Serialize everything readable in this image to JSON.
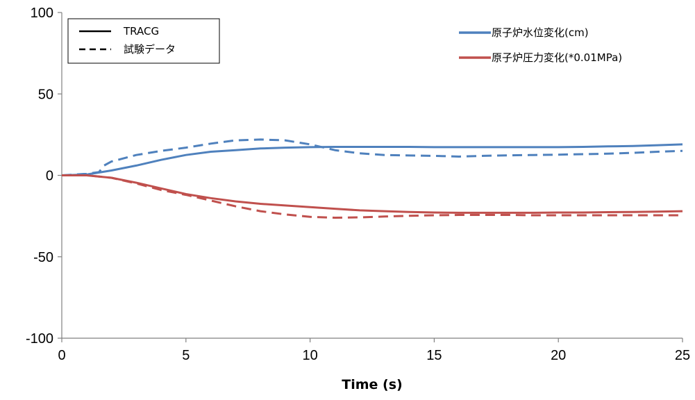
{
  "chart_data": {
    "type": "line",
    "xlabel": "Time (s)",
    "ylabel": "",
    "xlim": [
      0,
      25
    ],
    "ylim": [
      -100,
      100
    ],
    "xticks": [
      "0",
      "5",
      "10",
      "15",
      "20",
      "25"
    ],
    "yticks": [
      "100",
      "50",
      "0",
      "-50",
      "-100"
    ],
    "grid": false,
    "line_style_legend": [
      {
        "label": "TRACG",
        "style": "solid"
      },
      {
        "label": "試験データ",
        "style": "dashed"
      }
    ],
    "series": [
      {
        "name": "原子炉水位変化(cm)",
        "color": "#4F81BD",
        "style": "solid",
        "x": [
          0,
          1,
          2,
          3,
          4,
          5,
          6,
          7,
          8,
          9,
          10,
          11,
          12,
          13,
          14,
          15,
          16,
          17,
          18,
          19,
          20,
          21,
          22,
          23,
          24,
          25
        ],
        "y": [
          0,
          0.5,
          3,
          6,
          9.5,
          12.5,
          14.5,
          15.5,
          16.5,
          17,
          17.3,
          17.5,
          17.5,
          17.5,
          17.5,
          17.3,
          17.3,
          17.3,
          17.3,
          17.3,
          17.3,
          17.5,
          17.8,
          18,
          18.5,
          19
        ]
      },
      {
        "name": "原子炉水位変化(cm)",
        "color": "#4F81BD",
        "style": "dashed",
        "x": [
          0,
          1,
          1.5,
          1.7,
          2,
          3,
          4,
          5,
          6,
          7,
          8,
          9,
          10,
          11,
          12,
          13,
          14,
          15,
          16,
          17,
          18,
          19,
          20,
          21,
          22,
          23,
          24,
          25
        ],
        "y": [
          0,
          1,
          2,
          6,
          8.5,
          12.5,
          15,
          17,
          19.5,
          21.5,
          22,
          21.5,
          19,
          15.5,
          13.5,
          12.5,
          12.2,
          12,
          11.5,
          12,
          12.3,
          12.5,
          12.7,
          13,
          13.3,
          13.8,
          14.5,
          15
        ]
      },
      {
        "name": "原子炉圧力変化(*0.01MPa)",
        "color": "#C0504D",
        "style": "solid",
        "x": [
          0,
          1,
          2,
          3,
          4,
          5,
          6,
          7,
          8,
          9,
          10,
          11,
          12,
          13,
          14,
          15,
          16,
          17,
          18,
          19,
          20,
          21,
          22,
          23,
          24,
          25
        ],
        "y": [
          0,
          0,
          -1.5,
          -4.5,
          -8,
          -11.5,
          -14,
          -16,
          -17.5,
          -18.5,
          -19.5,
          -20.5,
          -21.5,
          -22,
          -22.5,
          -22.8,
          -23,
          -23,
          -23,
          -23,
          -22.8,
          -22.8,
          -22.6,
          -22.5,
          -22.3,
          -22
        ]
      },
      {
        "name": "原子炉圧力変化(*0.01MPa)",
        "color": "#C0504D",
        "style": "dashed",
        "x": [
          0,
          1,
          2,
          3,
          4,
          5,
          6,
          7,
          8,
          9,
          10,
          11,
          12,
          13,
          14,
          15,
          16,
          17,
          18,
          19,
          20,
          21,
          22,
          23,
          24,
          25
        ],
        "y": [
          0,
          0,
          -1.5,
          -5,
          -9,
          -12,
          -15.5,
          -19,
          -22,
          -24,
          -25.5,
          -26,
          -25.8,
          -25.3,
          -24.8,
          -24.5,
          -24.3,
          -24.3,
          -24.3,
          -24.5,
          -24.5,
          -24.5,
          -24.5,
          -24.5,
          -24.5,
          -24.5
        ]
      }
    ],
    "color_legend": [
      {
        "label": "原子炉水位変化(cm)",
        "color": "#4F81BD"
      },
      {
        "label": "原子炉圧力変化(*0.01MPa)",
        "color": "#C0504D"
      }
    ]
  }
}
